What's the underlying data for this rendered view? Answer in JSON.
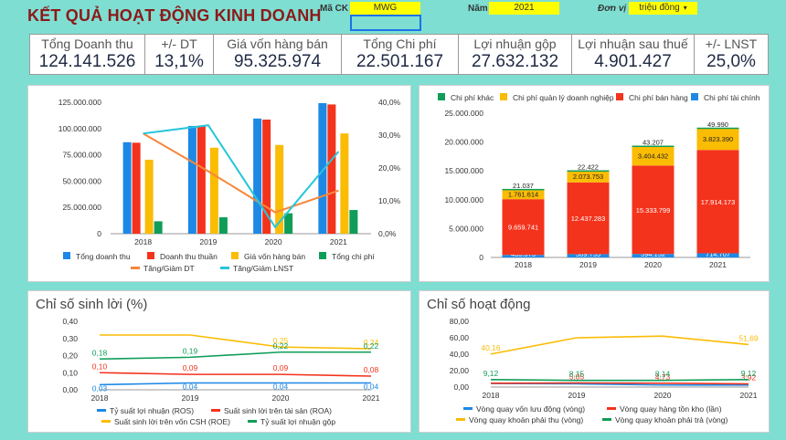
{
  "header": {
    "title": "KẾT QUẢ HOẠT ĐỘNG KINH DOANH",
    "ma_ck_label": "Mã CK",
    "ma_ck_value": "MWG",
    "nam_label": "Năm",
    "nam_value": "2021",
    "don_vi_label": "Đơn vị",
    "don_vi_value": "triệu đồng",
    "dropdown_glyph": "▾"
  },
  "kpis": [
    {
      "label": "Tổng Doanh thu",
      "value": "124.141.526"
    },
    {
      "label": "+/- DT",
      "value": "13,1%"
    },
    {
      "label": "Giá vốn hàng bán",
      "value": "95.325.974"
    },
    {
      "label": "Tổng Chi phí",
      "value": "22.501.167"
    },
    {
      "label": "Lợi nhuận gộp",
      "value": "27.632.132"
    },
    {
      "label": "Lợi nhuận sau thuế",
      "value": "4.901.427"
    },
    {
      "label": "+/- LNST",
      "value": "25,0%"
    }
  ],
  "colors": {
    "blue": "#1e88e5",
    "red": "#f4331c",
    "yellow": "#fbbc04",
    "green": "#0f9d58",
    "orange": "#f7873a",
    "teal": "#26c6da",
    "bg": "#7fded2",
    "title": "#8b1a1a"
  },
  "chart_data": [
    {
      "type": "bar",
      "categories": [
        "2018",
        "2019",
        "2020",
        "2021"
      ],
      "series": [
        {
          "name": "Tổng doanh thu",
          "values": [
            87000000,
            102500000,
            109500000,
            124141526
          ]
        },
        {
          "name": "Doanh thu thuần",
          "values": [
            86500000,
            102200000,
            108500000,
            122900000
          ]
        },
        {
          "name": "Giá vốn hàng bán",
          "values": [
            70300000,
            81800000,
            84400000,
            95325974
          ]
        },
        {
          "name": "Tổng chi phí",
          "values": [
            11800000,
            15600000,
            19400000,
            22501167
          ]
        }
      ],
      "line_series": [
        {
          "name": "Tăng/Giảm DT",
          "values": [
            30.5,
            19.0,
            6.5,
            13.1
          ]
        },
        {
          "name": "Tăng/Giảm LNST",
          "values": [
            30.5,
            33.0,
            2.0,
            25.0
          ]
        }
      ],
      "y_ticks": [
        "0",
        "25.000.000",
        "50.000.000",
        "75.000.000",
        "100.000.000",
        "125.000.000"
      ],
      "y2_ticks": [
        "0,0%",
        "10,0%",
        "20,0%",
        "30,0%",
        "40,0%"
      ],
      "ylim": [
        0,
        125000000
      ],
      "y2lim": [
        0,
        40
      ],
      "legend_position": "bottom"
    },
    {
      "type": "bar",
      "stacked": true,
      "categories": [
        "2018",
        "2019",
        "2020",
        "2021"
      ],
      "series": [
        {
          "name": "Chi phí khác",
          "values": [
            21037,
            22422,
            43207,
            49990
          ],
          "labels": [
            "21.037",
            "22.422",
            "43.207",
            "49.990"
          ]
        },
        {
          "name": "Chi phí quản lý doanh nghiệp",
          "values": [
            1761614,
            2073753,
            3404432,
            3823390
          ],
          "labels": [
            "1.761.614",
            "2.073.753",
            "3.404.432",
            "3.823.390"
          ]
        },
        {
          "name": "Chi phí bán hàng",
          "values": [
            9659741,
            12437283,
            15333799,
            17914173
          ],
          "labels": [
            "9.659.741",
            "12.437.283",
            "15.333.799",
            "17.914.173"
          ]
        },
        {
          "name": "Chi phí tài chính",
          "values": [
            436573,
            569755,
            594152,
            714707
          ],
          "labels": [
            "436.573",
            "569.755",
            "594.152",
            "714.707"
          ]
        }
      ],
      "y_ticks": [
        "0",
        "5.000.000",
        "10.000.000",
        "15.000.000",
        "20.000.000",
        "25.000.000"
      ],
      "ylim": [
        0,
        25000000
      ],
      "legend_position": "top"
    },
    {
      "type": "line",
      "title": "Chỉ số sinh lời (%)",
      "categories": [
        "2018",
        "2019",
        "2020",
        "2021"
      ],
      "series": [
        {
          "name": "Tỷ suất lợi nhuận (ROS)",
          "values": [
            0.03,
            0.04,
            0.04,
            0.04
          ],
          "labels": [
            "0,03",
            "0,04",
            "0,04",
            "0,04"
          ]
        },
        {
          "name": "Suất sinh lời trên tài sản (ROA)",
          "values": [
            0.1,
            0.09,
            0.09,
            0.08
          ],
          "labels": [
            "0,10",
            "0,09",
            "0,09",
            "0,08"
          ]
        },
        {
          "name": "Suất sinh lời trên vốn CSH (ROE)",
          "values": [
            0.32,
            0.32,
            0.25,
            0.24
          ],
          "labels": [
            "",
            "",
            "0,25",
            "0,24"
          ]
        },
        {
          "name": "Tỷ suất lợi nhuận gộp",
          "values": [
            0.18,
            0.19,
            0.22,
            0.22
          ],
          "labels": [
            "0,18",
            "0,19",
            "0,22",
            "0,22"
          ]
        }
      ],
      "y_ticks": [
        "0,00",
        "0,10",
        "0,20",
        "0,30",
        "0,40"
      ],
      "ylim": [
        0,
        0.4
      ],
      "legend_position": "bottom"
    },
    {
      "type": "line",
      "title": "Chỉ số hoạt động",
      "categories": [
        "2018",
        "2019",
        "2020",
        "2021"
      ],
      "series": [
        {
          "name": "Vòng quay vốn lưu động (vòng)",
          "values": [
            4.3,
            3.9,
            2.5,
            2.4
          ],
          "labels": [
            "",
            "",
            "",
            ""
          ]
        },
        {
          "name": "Vòng quay hàng tồn kho (lần)",
          "values": [
            4.6,
            5.0,
            4.7,
            3.9
          ],
          "labels": [
            "",
            "5,05",
            "4,73",
            "3,92"
          ]
        },
        {
          "name": "Vòng quay khoản phải thu (vòng)",
          "values": [
            40.16,
            60.0,
            62.0,
            51.69
          ],
          "labels": [
            "40,16",
            "",
            "",
            "51,69"
          ]
        },
        {
          "name": "Vòng quay khoản phải trả (vòng)",
          "values": [
            9.12,
            8.15,
            8.14,
            9.12
          ],
          "labels": [
            "9,12",
            "8,15",
            "8,14",
            "9,12"
          ]
        }
      ],
      "y_ticks": [
        "0,00",
        "20,00",
        "40,00",
        "60,00",
        "80,00"
      ],
      "ylim": [
        0,
        80
      ],
      "legend_position": "bottom"
    }
  ]
}
